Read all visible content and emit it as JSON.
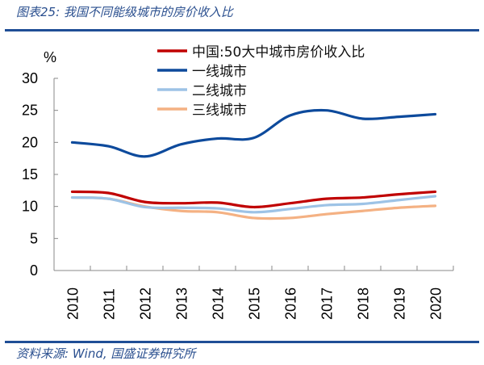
{
  "header": {
    "title": "图表25:  我国不同能级城市的房价收入比"
  },
  "footer": {
    "source": "资料来源:  Wind,  国盛证券研究所"
  },
  "colors": {
    "rule": "#1f4e96",
    "title_text": "#2a4f8f"
  },
  "chart_data": {
    "type": "line",
    "title": "",
    "ylabel": "%",
    "xlabel": "",
    "ylim": [
      0,
      30
    ],
    "yticks": [
      "0",
      "5",
      "10",
      "15",
      "20",
      "25",
      "30"
    ],
    "categories": [
      "2010",
      "2011",
      "2012",
      "2013",
      "2014",
      "2015",
      "2016",
      "2017",
      "2018",
      "2019",
      "2020"
    ],
    "legend_position": "top-center",
    "grid": false,
    "smooth": true,
    "series": [
      {
        "name": "中国:50大中城市房价收入比",
        "color": "#c00000",
        "values": [
          12.3,
          12.1,
          10.7,
          10.5,
          10.6,
          9.9,
          10.5,
          11.2,
          11.4,
          11.9,
          12.3
        ]
      },
      {
        "name": "一线城市",
        "color": "#0d4a9c",
        "values": [
          20.0,
          19.4,
          17.8,
          19.7,
          20.6,
          20.7,
          24.2,
          25.0,
          23.7,
          24.0,
          24.4
        ]
      },
      {
        "name": "二线城市",
        "color": "#9dc3e6",
        "values": [
          11.4,
          11.2,
          9.9,
          9.8,
          9.7,
          9.1,
          9.6,
          10.2,
          10.4,
          11.0,
          11.6
        ]
      },
      {
        "name": "三线城市",
        "color": "#f4b183",
        "values": [
          11.4,
          11.2,
          10.0,
          9.3,
          9.1,
          8.2,
          8.2,
          8.8,
          9.3,
          9.8,
          10.1
        ]
      }
    ]
  }
}
